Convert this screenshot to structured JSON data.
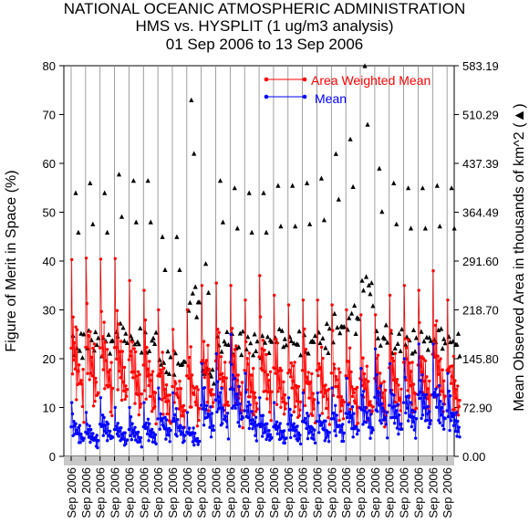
{
  "chart_data": {
    "type": "line",
    "title_lines": [
      "NATIONAL OCEANIC ATMOSPHERIC ADMINISTRATION",
      "HMS vs. HYSPLIT (1 ug/m3 analysis)",
      "01 Sep 2006 to 13 Sep 2006"
    ],
    "ylabel": "Figure of Merit in Space (%)",
    "y2label": "Mean Observed Area in thousands of km^2 (▲)",
    "ylim": [
      0,
      80
    ],
    "y2lim": [
      0,
      583.19
    ],
    "yticks": [
      "0",
      "10",
      "20",
      "30",
      "40",
      "50",
      "60",
      "70",
      "80"
    ],
    "y2ticks": [
      "0.00",
      "72.90",
      "145.80",
      "218.70",
      "291.60",
      "364.49",
      "437.39",
      "510.29",
      "583.19"
    ],
    "xtick_labels": [
      "Sep 2006",
      "Sep 2006",
      "Sep 2006",
      "Sep 2006",
      "Sep 2006",
      "Sep 2006",
      "Sep 2006",
      "Sep 2006",
      "Sep 2006",
      "Sep 2006",
      "Sep 2006",
      "Sep 2006",
      "Sep 2006",
      "Sep 2006",
      "Sep 2006",
      "Sep 2006",
      "Sep 2006",
      "Sep 2006",
      "Sep 2006",
      "Sep 2006",
      "Sep 2006",
      "Sep 2006",
      "Sep 2006",
      "Sep 2006",
      "Sep 2006",
      "Sep 2006",
      "Sep 2006"
    ],
    "legend": [
      {
        "label": "Area Weighted Mean",
        "color": "#ff0000"
      },
      {
        "label": "Mean",
        "color": "#0000ff"
      }
    ],
    "legend_position": "top-right",
    "colors": {
      "awm": "#ff0000",
      "mean": "#0000ff",
      "area": "#000000"
    },
    "run_count": 27,
    "points_per_run": 20,
    "area_weighted_mean_peaks": [
      40.3,
      40.6,
      40.4,
      40.5,
      36.0,
      34.0,
      30.0,
      26.0,
      30.0,
      35.0,
      35.5,
      35.0,
      32.0,
      37.0,
      33.0,
      31.0,
      32.0,
      32.0,
      31.0,
      30.0,
      29.0,
      29.0,
      33.0,
      35.0,
      34.0,
      38.0,
      32.0
    ],
    "mean_peaks": [
      11.0,
      9.0,
      12.0,
      10.0,
      10.0,
      11.0,
      14.0,
      13.0,
      9.0,
      19.0,
      21.0,
      25.0,
      17.0,
      12.0,
      11.0,
      12.0,
      13.0,
      13.0,
      14.0,
      16.0,
      18.0,
      22.0,
      19.0,
      20.0,
      23.0,
      23.0,
      17.0
    ],
    "area_peaks": [
      54.0,
      56.0,
      54.0,
      57.8,
      56.5,
      56.5,
      45.0,
      45.0,
      73.0,
      39.5,
      56.5,
      55.0,
      54.0,
      54.0,
      55.5,
      55.5,
      56.0,
      57.0,
      62.0,
      65.0,
      80.0,
      59.0,
      56.0,
      55.0,
      55.0,
      55.5,
      55.0
    ]
  }
}
